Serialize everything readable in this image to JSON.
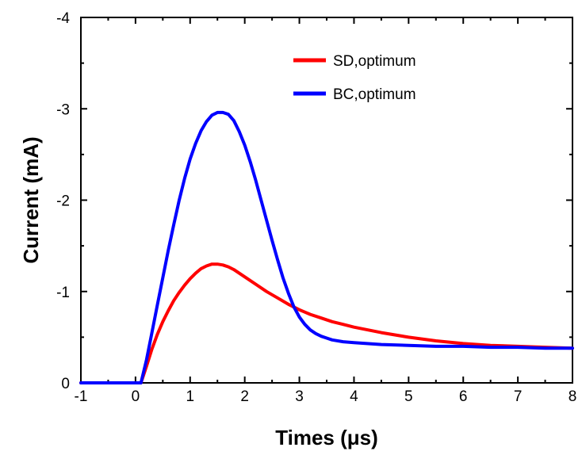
{
  "chart_data": {
    "type": "line",
    "title": "",
    "xlabel": "Times (μs)",
    "ylabel": "Current (mA)",
    "xlim": [
      -1,
      8
    ],
    "ylim": [
      0,
      -4
    ],
    "y_axis_inverted": true,
    "x_ticks": [
      "-1",
      "0",
      "1",
      "2",
      "3",
      "4",
      "5",
      "6",
      "7",
      "8"
    ],
    "y_ticks": [
      "0",
      "-1",
      "-2",
      "-3",
      "-4"
    ],
    "grid": false,
    "legend_position": "top-right",
    "series": [
      {
        "name": "SD,optimum",
        "color": "#ff0000",
        "x": [
          -1,
          0,
          0.1,
          0.2,
          0.3,
          0.4,
          0.5,
          0.6,
          0.7,
          0.8,
          0.9,
          1.0,
          1.1,
          1.2,
          1.3,
          1.4,
          1.5,
          1.6,
          1.7,
          1.8,
          1.9,
          2.0,
          2.2,
          2.4,
          2.6,
          2.8,
          3.0,
          3.2,
          3.4,
          3.6,
          3.8,
          4.0,
          4.5,
          5.0,
          5.5,
          6.0,
          6.5,
          7.0,
          7.5,
          8.0
        ],
        "y": [
          0,
          0,
          0,
          -0.18,
          -0.37,
          -0.53,
          -0.67,
          -0.79,
          -0.9,
          -0.99,
          -1.07,
          -1.14,
          -1.2,
          -1.25,
          -1.28,
          -1.3,
          -1.3,
          -1.29,
          -1.27,
          -1.24,
          -1.2,
          -1.16,
          -1.08,
          -1.0,
          -0.93,
          -0.86,
          -0.8,
          -0.75,
          -0.71,
          -0.67,
          -0.64,
          -0.61,
          -0.55,
          -0.5,
          -0.46,
          -0.43,
          -0.41,
          -0.4,
          -0.39,
          -0.38
        ]
      },
      {
        "name": "BC,optimum",
        "color": "#0000ff",
        "x": [
          -1,
          0,
          0.1,
          0.2,
          0.3,
          0.4,
          0.5,
          0.6,
          0.7,
          0.8,
          0.9,
          1.0,
          1.1,
          1.2,
          1.3,
          1.4,
          1.5,
          1.6,
          1.7,
          1.8,
          1.9,
          2.0,
          2.1,
          2.2,
          2.3,
          2.4,
          2.5,
          2.6,
          2.7,
          2.8,
          2.9,
          3.0,
          3.1,
          3.2,
          3.3,
          3.4,
          3.5,
          3.6,
          3.8,
          4.0,
          4.5,
          5.0,
          5.5,
          6.0,
          6.5,
          7.0,
          7.5,
          8.0
        ],
        "y": [
          0,
          0,
          0,
          -0.25,
          -0.55,
          -0.85,
          -1.15,
          -1.45,
          -1.73,
          -2.0,
          -2.24,
          -2.45,
          -2.62,
          -2.76,
          -2.86,
          -2.93,
          -2.96,
          -2.96,
          -2.94,
          -2.87,
          -2.75,
          -2.6,
          -2.42,
          -2.22,
          -2.0,
          -1.78,
          -1.56,
          -1.35,
          -1.15,
          -0.98,
          -0.83,
          -0.72,
          -0.64,
          -0.58,
          -0.54,
          -0.51,
          -0.49,
          -0.47,
          -0.45,
          -0.44,
          -0.42,
          -0.41,
          -0.4,
          -0.4,
          -0.39,
          -0.39,
          -0.38,
          -0.38
        ]
      }
    ]
  }
}
